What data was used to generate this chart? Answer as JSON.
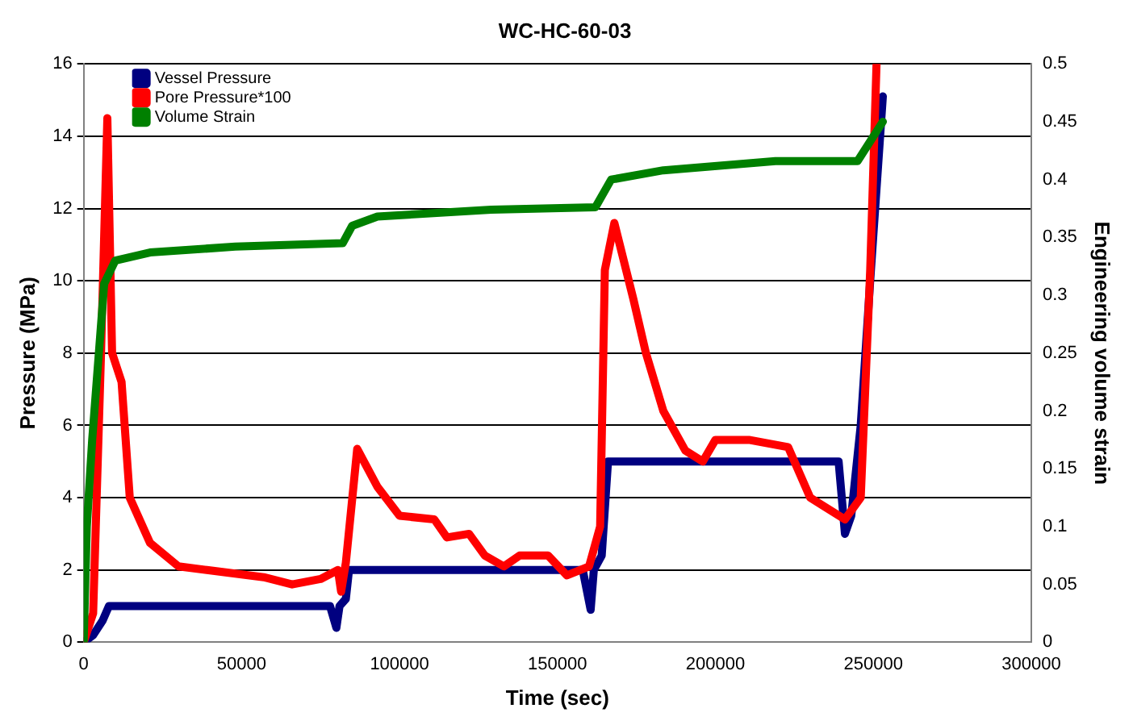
{
  "chart_data": {
    "type": "line",
    "title": "WC-HC-60-03",
    "xlabel": "Time (sec)",
    "ylabel": "Pressure (MPa)",
    "y2label": "Engineering volume strain",
    "xlim": [
      0,
      300000
    ],
    "xticks": [
      0,
      50000,
      100000,
      150000,
      200000,
      250000,
      300000
    ],
    "ylim": [
      0,
      16
    ],
    "yticks": [
      0,
      2,
      4,
      6,
      8,
      10,
      12,
      14,
      16
    ],
    "y2lim": [
      0,
      0.5
    ],
    "y2ticks": [
      0,
      0.05,
      0.1,
      0.15,
      0.2,
      0.25,
      0.3,
      0.35,
      0.4,
      0.45,
      0.5
    ],
    "grid": "y",
    "legend": "top left",
    "series": [
      {
        "name": "Vessel Pressure",
        "color": "#000080",
        "x": [
          0,
          3000,
          6000,
          8000,
          20000,
          50000,
          78000,
          80000,
          81000,
          83000,
          84000,
          120000,
          158000,
          160500,
          161500,
          164000,
          166000,
          200000,
          239000,
          241000,
          243000,
          246000,
          249000,
          253000
        ],
        "values": [
          0,
          0.2,
          0.6,
          1.0,
          1.0,
          1.0,
          1.0,
          0.4,
          1.0,
          1.2,
          2.0,
          2.0,
          2.0,
          0.9,
          2.0,
          2.4,
          5.0,
          5.0,
          5.0,
          3.0,
          3.5,
          6.0,
          10.0,
          15.1
        ]
      },
      {
        "name": "Pore Pressure*100",
        "color": "#ff0000",
        "x": [
          0,
          3000,
          5500,
          7500,
          9000,
          12000,
          14600,
          21000,
          30000,
          39000,
          57000,
          66000,
          75000,
          80500,
          81500,
          83000,
          86600,
          93000,
          100000,
          111000,
          115000,
          122000,
          127000,
          133000,
          138000,
          147000,
          153000,
          160000,
          163500,
          165000,
          168000,
          174000,
          178000,
          183500,
          190500,
          196000,
          200000,
          210600,
          223000,
          230000,
          241000,
          246000,
          249000,
          251000
        ],
        "values": [
          0,
          0.8,
          8.0,
          14.5,
          8.0,
          7.2,
          4.0,
          2.75,
          2.1,
          2.0,
          1.8,
          1.6,
          1.75,
          2.0,
          1.4,
          2.2,
          5.35,
          4.3,
          3.5,
          3.4,
          2.9,
          3.0,
          2.4,
          2.1,
          2.4,
          2.4,
          1.85,
          2.1,
          3.2,
          10.3,
          11.6,
          9.5,
          8.0,
          6.4,
          5.3,
          5.0,
          5.6,
          5.6,
          5.4,
          4.0,
          3.4,
          4.0,
          10.3,
          16.0
        ]
      },
      {
        "name": "Volume Strain",
        "color": "#008000",
        "axis": "y2",
        "x": [
          0,
          1000,
          2700,
          6500,
          10000,
          21000,
          48000,
          82000,
          85000,
          93000,
          129000,
          162000,
          167000,
          183500,
          219000,
          245000,
          253000
        ],
        "values": [
          0,
          0.1,
          0.175,
          0.31,
          0.33,
          0.337,
          0.342,
          0.345,
          0.36,
          0.368,
          0.374,
          0.376,
          0.4,
          0.408,
          0.416,
          0.416,
          0.45
        ]
      }
    ]
  }
}
